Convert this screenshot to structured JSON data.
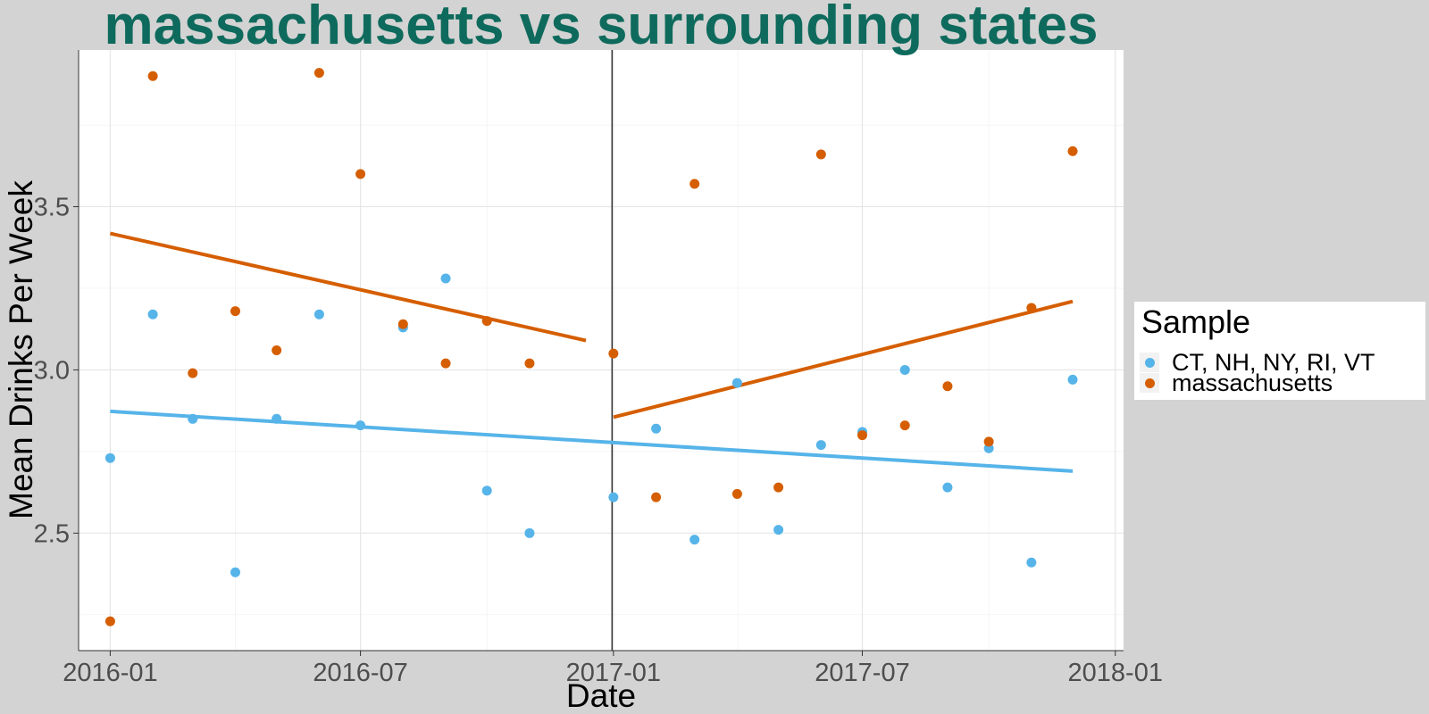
{
  "chart_data": {
    "type": "scatter",
    "title": "massachusetts vs surrounding states",
    "xlabel": "Date",
    "ylabel": "Mean Drinks Per Week",
    "x_ticks": [
      "2016-01",
      "2016-07",
      "2017-01",
      "2017-07",
      "2018-01"
    ],
    "y_ticks": [
      "2.5",
      "3.0",
      "3.5"
    ],
    "ylim": [
      2.14,
      3.98
    ],
    "xlim": [
      "2015-12-09",
      "2018-01-07"
    ],
    "grid": true,
    "legend_position": "right",
    "reference_line_x": "2016-12-31",
    "legend": {
      "title": "Sample"
    },
    "series": [
      {
        "name": "CT, NH, NY, RI, VT",
        "color": "#56b4e9",
        "points": [
          {
            "x": "2016-01-01",
            "y": 2.73
          },
          {
            "x": "2016-02-01",
            "y": 3.17
          },
          {
            "x": "2016-03-01",
            "y": 2.85
          },
          {
            "x": "2016-04-01",
            "y": 2.38
          },
          {
            "x": "2016-05-01",
            "y": 2.85
          },
          {
            "x": "2016-06-01",
            "y": 3.17
          },
          {
            "x": "2016-07-01",
            "y": 2.83
          },
          {
            "x": "2016-08-01",
            "y": 3.13
          },
          {
            "x": "2016-09-01",
            "y": 3.28
          },
          {
            "x": "2016-10-01",
            "y": 2.63
          },
          {
            "x": "2016-11-01",
            "y": 2.5
          },
          {
            "x": "2017-01-01",
            "y": 2.61
          },
          {
            "x": "2017-02-01",
            "y": 2.82
          },
          {
            "x": "2017-03-01",
            "y": 2.48
          },
          {
            "x": "2017-04-01",
            "y": 2.96
          },
          {
            "x": "2017-05-01",
            "y": 2.51
          },
          {
            "x": "2017-06-01",
            "y": 2.77
          },
          {
            "x": "2017-07-01",
            "y": 2.81
          },
          {
            "x": "2017-08-01",
            "y": 3.0
          },
          {
            "x": "2017-09-01",
            "y": 2.64
          },
          {
            "x": "2017-10-01",
            "y": 2.76
          },
          {
            "x": "2017-11-01",
            "y": 2.41
          },
          {
            "x": "2017-12-01",
            "y": 2.97
          }
        ],
        "trend_lines": [
          {
            "from": {
              "x": "2016-01-01",
              "y": 2.873
            },
            "to": {
              "x": "2017-12-01",
              "y": 2.69
            }
          }
        ]
      },
      {
        "name": "massachusetts",
        "color": "#d55e00",
        "points": [
          {
            "x": "2016-01-01",
            "y": 2.23
          },
          {
            "x": "2016-02-01",
            "y": 3.9
          },
          {
            "x": "2016-03-01",
            "y": 2.99
          },
          {
            "x": "2016-04-01",
            "y": 3.18
          },
          {
            "x": "2016-05-01",
            "y": 3.06
          },
          {
            "x": "2016-06-01",
            "y": 3.91
          },
          {
            "x": "2016-07-01",
            "y": 3.6
          },
          {
            "x": "2016-08-01",
            "y": 3.14
          },
          {
            "x": "2016-09-01",
            "y": 3.02
          },
          {
            "x": "2016-10-01",
            "y": 3.15
          },
          {
            "x": "2016-11-01",
            "y": 3.02
          },
          {
            "x": "2017-01-01",
            "y": 3.05
          },
          {
            "x": "2017-02-01",
            "y": 2.61
          },
          {
            "x": "2017-03-01",
            "y": 3.57
          },
          {
            "x": "2017-04-01",
            "y": 2.62
          },
          {
            "x": "2017-05-01",
            "y": 2.64
          },
          {
            "x": "2017-06-01",
            "y": 3.66
          },
          {
            "x": "2017-07-01",
            "y": 2.8
          },
          {
            "x": "2017-08-01",
            "y": 2.83
          },
          {
            "x": "2017-09-01",
            "y": 2.95
          },
          {
            "x": "2017-10-01",
            "y": 2.78
          },
          {
            "x": "2017-11-01",
            "y": 3.19
          },
          {
            "x": "2017-12-01",
            "y": 3.67
          }
        ],
        "trend_lines": [
          {
            "from": {
              "x": "2016-01-01",
              "y": 3.418
            },
            "to": {
              "x": "2016-12-12",
              "y": 3.09
            }
          },
          {
            "from": {
              "x": "2017-01-01",
              "y": 2.855
            },
            "to": {
              "x": "2017-12-01",
              "y": 3.21
            }
          }
        ]
      }
    ]
  },
  "style": {
    "title_color": "#0e6a5c",
    "panel_background": "#ffffff",
    "page_background": "#d3d3d3"
  }
}
